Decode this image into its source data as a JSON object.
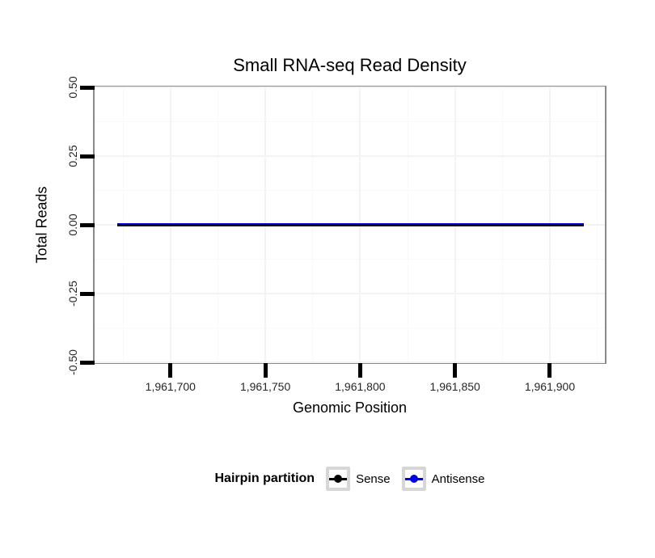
{
  "chart_data": {
    "type": "line",
    "title": "Small RNA-seq Read Density",
    "xlabel": "Genomic Position",
    "ylabel": "Total Reads",
    "xlim": [
      1961660,
      1961929
    ],
    "ylim": [
      -0.5,
      0.5
    ],
    "x_ticks": [
      1961700,
      1961750,
      1961800,
      1961850,
      1961900
    ],
    "x_tick_labels": [
      "1,961,700",
      "1,961,750",
      "1,961,800",
      "1,961,850",
      "1,961,900"
    ],
    "y_ticks": [
      0.5,
      0.25,
      0.0,
      -0.25,
      -0.5
    ],
    "y_tick_labels": [
      "0.50",
      "0.25",
      "0.00",
      "-0.25",
      "-0.50"
    ],
    "grid": "major and minor gridlines, very light gray, on white panel with gray border",
    "series": [
      {
        "name": "Sense",
        "color": "#000000",
        "x_start": 1961672,
        "x_end": 1961918,
        "value": 0.0
      },
      {
        "name": "Antisense",
        "color": "#0000e6",
        "x_start": 1961672,
        "x_end": 1961918,
        "value": 0.0
      }
    ],
    "legend": {
      "title": "Hairpin partition",
      "position": "bottom",
      "entries": [
        {
          "label": "Sense",
          "color": "#000000"
        },
        {
          "label": "Antisense",
          "color": "#0000e6"
        }
      ]
    }
  }
}
